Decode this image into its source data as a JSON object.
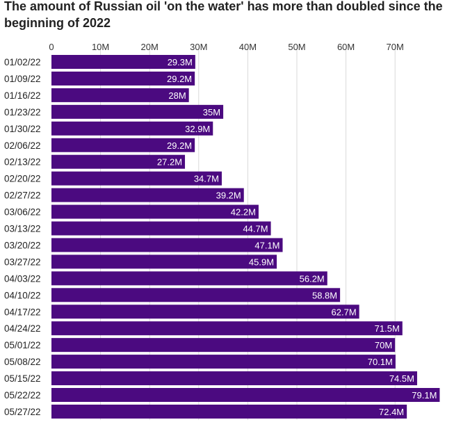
{
  "chart_data": {
    "type": "bar",
    "orientation": "horizontal",
    "title": "The amount of Russian oil 'on the water' has more than doubled since the beginning of 2022",
    "xlim": [
      0,
      80
    ],
    "ticks": [
      0,
      10,
      20,
      30,
      40,
      50,
      60,
      70
    ],
    "tick_labels": [
      "0",
      "10M",
      "20M",
      "30M",
      "40M",
      "50M",
      "60M",
      "70M"
    ],
    "grid": true,
    "categories": [
      "01/02/22",
      "01/09/22",
      "01/16/22",
      "01/23/22",
      "01/30/22",
      "02/06/22",
      "02/13/22",
      "02/20/22",
      "02/27/22",
      "03/06/22",
      "03/13/22",
      "03/20/22",
      "03/27/22",
      "04/03/22",
      "04/10/22",
      "04/17/22",
      "04/24/22",
      "05/01/22",
      "05/08/22",
      "05/15/22",
      "05/22/22",
      "05/27/22"
    ],
    "values": [
      29.3,
      29.2,
      28,
      35,
      32.9,
      29.2,
      27.2,
      34.7,
      39.2,
      42.2,
      44.7,
      47.1,
      45.9,
      56.2,
      58.8,
      62.7,
      71.5,
      70,
      70.1,
      74.5,
      79.1,
      72.4
    ],
    "value_labels": [
      "29.3M",
      "29.2M",
      "28M",
      "35M",
      "32.9M",
      "29.2M",
      "27.2M",
      "34.7M",
      "39.2M",
      "42.2M",
      "44.7M",
      "47.1M",
      "45.9M",
      "56.2M",
      "58.8M",
      "62.7M",
      "71.5M",
      "70M",
      "70.1M",
      "74.5M",
      "79.1M",
      "72.4M"
    ],
    "bar_color": "#4b0a80"
  }
}
